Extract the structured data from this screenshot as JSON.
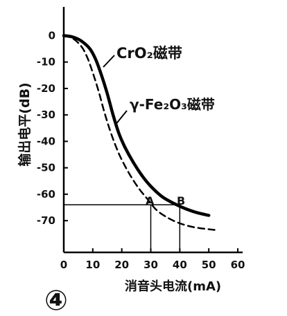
{
  "chart_data": {
    "type": "line",
    "figure_number": "④",
    "xlabel": "消音头电流(mA)",
    "ylabel": "输出电平(dB)",
    "xlim": [
      0,
      60
    ],
    "ylim": [
      -82,
      3
    ],
    "xticks": [
      0,
      10,
      20,
      30,
      40,
      50,
      60
    ],
    "yticks": [
      0,
      -10,
      -20,
      -30,
      -40,
      -50,
      -60,
      -70
    ],
    "ytick_labels": [
      "0",
      "-10",
      "-20",
      "-30",
      "-40",
      "-50",
      "-60",
      "-70"
    ],
    "grid": false,
    "series": [
      {
        "name": "CrO₂磁带",
        "style": "solid",
        "color": "#000000",
        "points": [
          [
            0,
            0
          ],
          [
            3,
            -0.5
          ],
          [
            6,
            -2
          ],
          [
            9,
            -5
          ],
          [
            11,
            -9
          ],
          [
            13,
            -15
          ],
          [
            15,
            -22
          ],
          [
            17,
            -30
          ],
          [
            19,
            -37
          ],
          [
            21,
            -42
          ],
          [
            24,
            -48
          ],
          [
            27,
            -53
          ],
          [
            30,
            -57
          ],
          [
            34,
            -61
          ],
          [
            38,
            -63.5
          ],
          [
            42,
            -65.5
          ],
          [
            46,
            -67
          ],
          [
            50,
            -68
          ]
        ]
      },
      {
        "name": "γ-Fe₂O₃磁带",
        "style": "dashed",
        "color": "#000000",
        "points": [
          [
            0,
            0
          ],
          [
            3,
            -1
          ],
          [
            6,
            -4
          ],
          [
            8,
            -8
          ],
          [
            10,
            -14
          ],
          [
            12,
            -21
          ],
          [
            14,
            -29
          ],
          [
            16,
            -36
          ],
          [
            18,
            -42
          ],
          [
            20,
            -47
          ],
          [
            23,
            -53
          ],
          [
            26,
            -58
          ],
          [
            29,
            -62
          ],
          [
            32,
            -66
          ],
          [
            36,
            -69
          ],
          [
            40,
            -71
          ],
          [
            45,
            -72.5
          ],
          [
            52,
            -73.5
          ]
        ]
      }
    ],
    "annotations": [
      {
        "label": "A",
        "x": 30,
        "y": -64
      },
      {
        "label": "B",
        "x": 40,
        "y": -64
      }
    ]
  }
}
